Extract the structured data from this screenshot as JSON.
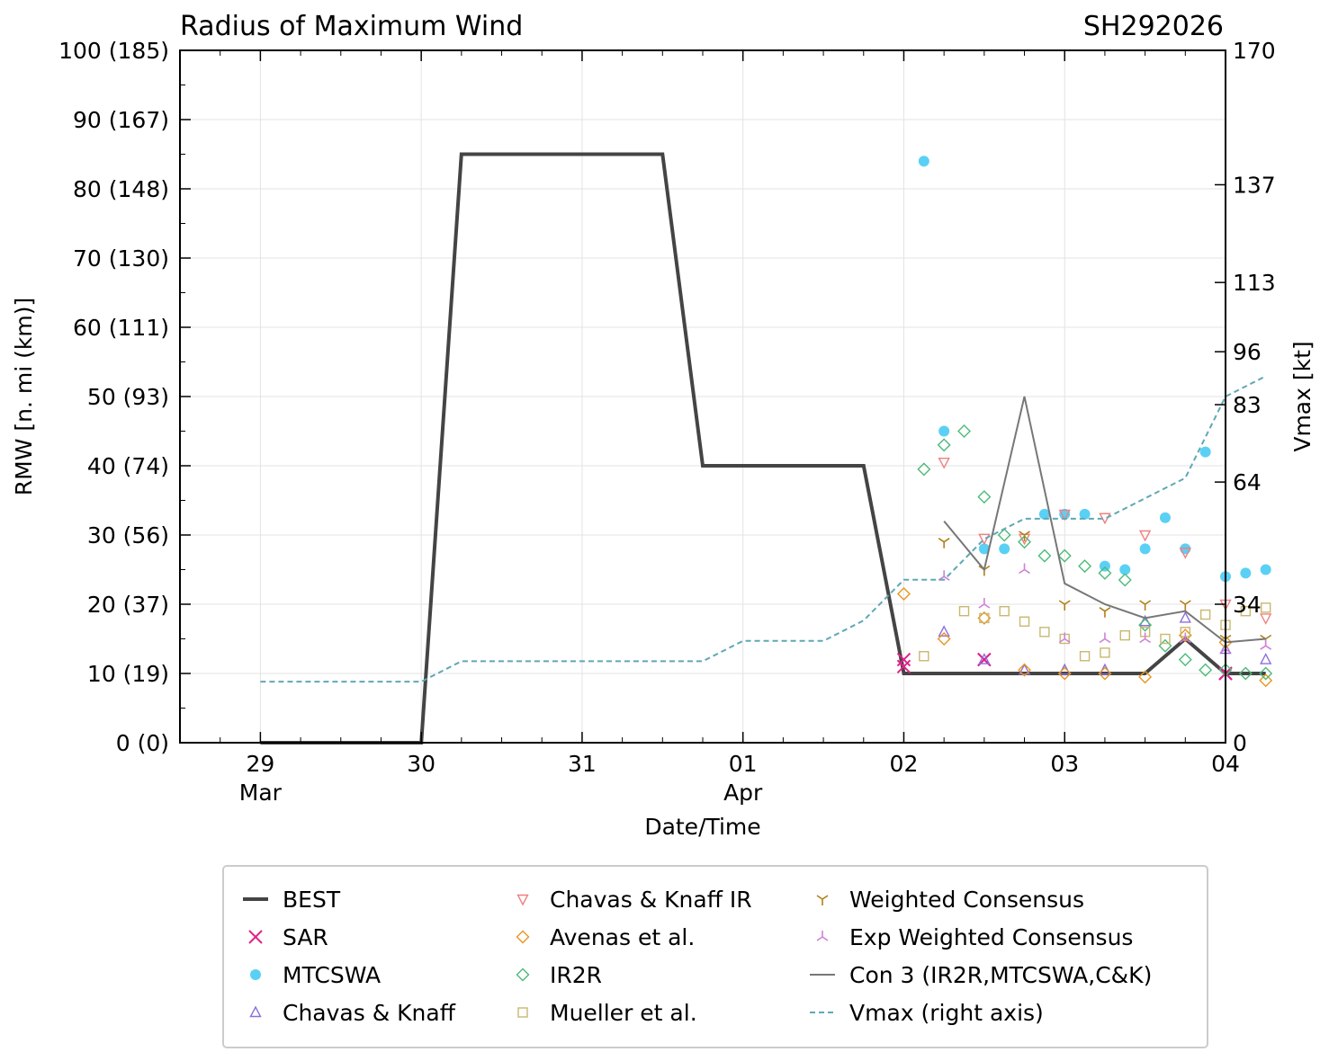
{
  "chart_data": {
    "type": "line",
    "title": "Radius of Maximum Wind",
    "storm_id": "SH292026",
    "xlabel": "Date/Time",
    "ylabel": "RMW [n. mi (km)]",
    "y2label": "Vmax [kt]",
    "ylim": [
      0,
      100
    ],
    "xlim_hours": [
      -12,
      144
    ],
    "x_ticks": [
      {
        "hour": 0,
        "day": "29",
        "month": "Mar"
      },
      {
        "hour": 24,
        "day": "30",
        "month": ""
      },
      {
        "hour": 48,
        "day": "31",
        "month": ""
      },
      {
        "hour": 72,
        "day": "01",
        "month": "Apr"
      },
      {
        "hour": 96,
        "day": "02",
        "month": ""
      },
      {
        "hour": 120,
        "day": "03",
        "month": ""
      },
      {
        "hour": 144,
        "day": "04",
        "month": ""
      }
    ],
    "y_ticks": [
      {
        "value": 0,
        "label": "0 (0)"
      },
      {
        "value": 10,
        "label": "10 (19)"
      },
      {
        "value": 20,
        "label": "20 (37)"
      },
      {
        "value": 30,
        "label": "30 (56)"
      },
      {
        "value": 40,
        "label": "40 (74)"
      },
      {
        "value": 50,
        "label": "50 (93)"
      },
      {
        "value": 60,
        "label": "60 (111)"
      },
      {
        "value": 70,
        "label": "70 (130)"
      },
      {
        "value": 80,
        "label": "80 (148)"
      },
      {
        "value": 90,
        "label": "90 (167)"
      },
      {
        "value": 100,
        "label": "100 (185)"
      }
    ],
    "y2_ticks": [
      {
        "value": 0,
        "label": "0"
      },
      {
        "value": 34,
        "label": "34"
      },
      {
        "value": 64,
        "label": "64"
      },
      {
        "value": 83,
        "label": "83"
      },
      {
        "value": 96,
        "label": "96"
      },
      {
        "value": 113,
        "label": "113"
      },
      {
        "value": 137,
        "label": "137"
      },
      {
        "value": 170,
        "label": "170"
      }
    ],
    "y2lim": [
      0,
      170
    ],
    "series": [
      {
        "name": "BEST",
        "marker": "line",
        "color": "#444444",
        "x": [
          0,
          24,
          30,
          60,
          66,
          90,
          96,
          102,
          108,
          114,
          120,
          126,
          132,
          138,
          144,
          150
        ],
        "y": [
          0,
          0,
          85,
          85,
          40,
          40,
          10,
          10,
          10,
          10,
          10,
          10,
          10,
          15,
          10,
          10
        ]
      },
      {
        "name": "SAR",
        "marker": "x",
        "color": "#e0218a",
        "x": [
          96,
          96,
          108,
          108,
          144,
          144
        ],
        "y": [
          11,
          12,
          12,
          12,
          10,
          10
        ]
      },
      {
        "name": "MTCSWA",
        "marker": "dot",
        "color": "#5bd0f5",
        "x": [
          99,
          102,
          108,
          111,
          117,
          120,
          123,
          126,
          129,
          132,
          135,
          138,
          141,
          144,
          147,
          150
        ],
        "y": [
          84,
          45,
          28,
          28,
          33,
          33,
          33,
          25.5,
          25,
          28,
          32.5,
          28,
          42,
          24,
          24.5,
          25
        ]
      },
      {
        "name": "Chavas & Knaff",
        "marker": "triangle-up",
        "color": "#8a6fe0",
        "x": [
          102,
          108,
          114,
          120,
          126,
          132,
          138,
          144,
          150
        ],
        "y": [
          16,
          12,
          10.5,
          10.5,
          10.5,
          17.5,
          18,
          13.5,
          12
        ]
      },
      {
        "name": "Chavas & Knaff IR",
        "marker": "triangle-down",
        "color": "#f08080",
        "x": [
          102,
          108,
          114,
          120,
          126,
          132,
          138,
          144,
          150
        ],
        "y": [
          40.5,
          29.5,
          29.5,
          33,
          32.5,
          30,
          27.5,
          20,
          18
        ]
      },
      {
        "name": "Avenas et al.",
        "marker": "diamond",
        "color": "#e8961e",
        "x": [
          96,
          102,
          108,
          114,
          120,
          126,
          132,
          138,
          144,
          150
        ],
        "y": [
          21.5,
          15,
          18,
          10.5,
          10,
          10,
          9.5,
          15.5,
          14.5,
          9
        ]
      },
      {
        "name": "IR2R",
        "marker": "diamond",
        "color": "#4cbb7a",
        "x": [
          99,
          102,
          105,
          108,
          111,
          114,
          117,
          120,
          123,
          126,
          129,
          132,
          135,
          138,
          141,
          144,
          147,
          150
        ],
        "y": [
          39.5,
          43,
          45,
          35.5,
          30,
          29,
          27,
          27,
          25.5,
          24.5,
          23.5,
          17,
          14,
          12,
          10.5,
          10.5,
          10,
          10
        ]
      },
      {
        "name": "Mueller et al.",
        "marker": "square",
        "color": "#c8b870",
        "x": [
          99,
          105,
          108,
          111,
          114,
          117,
          120,
          123,
          126,
          129,
          132,
          135,
          138,
          141,
          144,
          147,
          150
        ],
        "y": [
          12.5,
          19,
          18,
          19,
          17.5,
          16,
          15,
          12.5,
          13,
          15.5,
          16,
          15,
          16,
          18.5,
          17,
          19,
          19.5
        ]
      },
      {
        "name": "Weighted Consensus",
        "marker": "tri-down",
        "color": "#b08018",
        "x": [
          102,
          108,
          114,
          120,
          126,
          132,
          138,
          144,
          150
        ],
        "y": [
          29,
          25,
          30,
          20,
          19,
          20,
          20,
          15,
          15
        ]
      },
      {
        "name": "Exp Weighted Consensus",
        "marker": "tri-up",
        "color": "#d080d8",
        "x": [
          102,
          108,
          114,
          120,
          126,
          132,
          138,
          144,
          150
        ],
        "y": [
          24,
          20,
          25,
          15,
          15,
          15,
          15,
          13.5,
          14
        ]
      },
      {
        "name": "Con 3 (IR2R,MTCSWA,C&K)",
        "marker": "line",
        "color": "#777777",
        "x": [
          102,
          108,
          114,
          120,
          126,
          132,
          138,
          144,
          150
        ],
        "y": [
          32,
          25,
          50,
          23,
          20,
          18,
          19,
          14.5,
          15
        ]
      },
      {
        "name": "Vmax (right axis)",
        "marker": "dashed",
        "color": "#5fa8b5",
        "axis": "right",
        "x": [
          0,
          24,
          30,
          66,
          72,
          84,
          90,
          96,
          102,
          108,
          114,
          120,
          126,
          132,
          138,
          144,
          150
        ],
        "y": [
          15,
          15,
          20,
          20,
          25,
          25,
          30,
          40,
          40,
          50,
          55,
          55,
          55,
          60,
          65,
          85,
          90
        ]
      }
    ]
  }
}
